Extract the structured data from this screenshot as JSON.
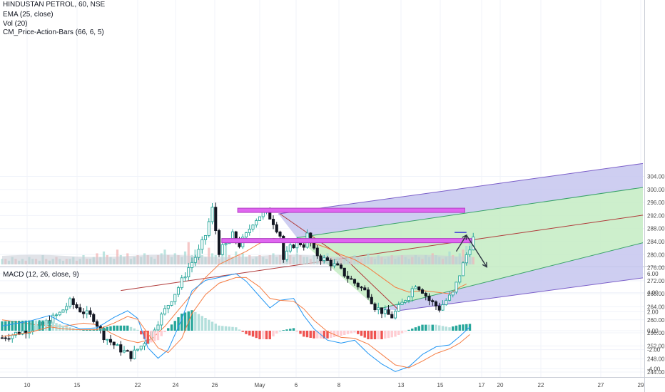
{
  "legend": {
    "symbol": "HINDUSTAN PETROL, 60, NSE",
    "ema": "EMA (25, close)",
    "vol": "Vol (20)",
    "pab": "CM_Price-Action-Bars (66, 6, 5)",
    "macd": "MACD (12, 26, close, 9)"
  },
  "colors": {
    "up": "#26a69a",
    "down": "#131722",
    "ema": "#f57c42",
    "macd_line": "#2196f3",
    "signal_line": "#f57c42",
    "hist_up_strong": "#26a69a",
    "hist_up_weak": "#b2dfdb",
    "hist_down_strong": "#ef5350",
    "hist_down_weak": "#ffcdd2",
    "zone": "#e066f0",
    "pitch_outer": "#c5c6ee",
    "pitch_inner": "#c8edc6"
  },
  "chart_data": [
    {
      "type": "candlestick",
      "title": "HINDUSTAN PETROL, 60, NSE",
      "x_tick_labels": [
        "10",
        "15",
        "22",
        "24",
        "26",
        "May",
        "6",
        "8",
        "13",
        "15",
        "17",
        "20",
        "22",
        "27",
        "29"
      ],
      "y_tick_labels": [
        "244.00",
        "248.00",
        "252.00",
        "256.00",
        "260.00",
        "264.00",
        "268.00",
        "272.00",
        "276.00",
        "280.00",
        "284.00",
        "288.00",
        "292.00",
        "296.00",
        "300.00",
        "304.00"
      ],
      "ylim": [
        241.5,
        305
      ],
      "price_path": [
        [
          0,
          254.5
        ],
        [
          6,
          256.5
        ],
        [
          12,
          258.5
        ],
        [
          17,
          262
        ],
        [
          20,
          265.5
        ],
        [
          23,
          263
        ],
        [
          27,
          260.5
        ],
        [
          30,
          255
        ],
        [
          34,
          251.5
        ],
        [
          38,
          249
        ],
        [
          41,
          252
        ],
        [
          44,
          256
        ],
        [
          48,
          263
        ],
        [
          52,
          270
        ],
        [
          55,
          276
        ],
        [
          58,
          281
        ],
        [
          60,
          286
        ],
        [
          62,
          294
        ],
        [
          64,
          281
        ],
        [
          66,
          283
        ],
        [
          68,
          286
        ],
        [
          70,
          283
        ],
        [
          72,
          286
        ],
        [
          74,
          290
        ],
        [
          76,
          292
        ],
        [
          78,
          293
        ],
        [
          80,
          290
        ],
        [
          82,
          286
        ],
        [
          83,
          278.5
        ],
        [
          85,
          282
        ],
        [
          87,
          284
        ],
        [
          89,
          283
        ],
        [
          90,
          286
        ],
        [
          92,
          281
        ],
        [
          94,
          279
        ],
        [
          96,
          278
        ],
        [
          99,
          276
        ],
        [
          102,
          273
        ],
        [
          105,
          270.5
        ],
        [
          108,
          268
        ],
        [
          110,
          264
        ],
        [
          113,
          262
        ],
        [
          115,
          261
        ],
        [
          118,
          265
        ],
        [
          120,
          268
        ],
        [
          122,
          271
        ],
        [
          124,
          269
        ],
        [
          126,
          266
        ],
        [
          129,
          263.5
        ],
        [
          131,
          266
        ],
        [
          133,
          268
        ],
        [
          135,
          274
        ],
        [
          137,
          280
        ],
        [
          139,
          285
        ]
      ],
      "ema": {
        "name": "EMA (25, close)",
        "points": [
          [
            0,
            260
          ],
          [
            10,
            258.5
          ],
          [
            18,
            258
          ],
          [
            24,
            259
          ],
          [
            28,
            258.5
          ],
          [
            32,
            256
          ],
          [
            36,
            254
          ],
          [
            40,
            253
          ],
          [
            44,
            254
          ],
          [
            48,
            258
          ],
          [
            52,
            263
          ],
          [
            56,
            268
          ],
          [
            60,
            273
          ],
          [
            64,
            277
          ],
          [
            68,
            279
          ],
          [
            72,
            281
          ],
          [
            76,
            283.5
          ],
          [
            80,
            285
          ],
          [
            84,
            284.5
          ],
          [
            88,
            284
          ],
          [
            92,
            283.5
          ],
          [
            96,
            282
          ],
          [
            100,
            280
          ],
          [
            104,
            278.5
          ],
          [
            108,
            276
          ],
          [
            112,
            273
          ],
          [
            116,
            270
          ],
          [
            120,
            268.5
          ],
          [
            124,
            269
          ],
          [
            128,
            268.5
          ],
          [
            132,
            268
          ],
          [
            135,
            270
          ],
          [
            137,
            271
          ]
        ]
      },
      "volume": {
        "name": "Vol (20)",
        "values": [
          3,
          3,
          2,
          4,
          3,
          2,
          3,
          2,
          4,
          3,
          3,
          2,
          5,
          3,
          2,
          3,
          4,
          3,
          2,
          3,
          3,
          4,
          2,
          3,
          5,
          3,
          3,
          4,
          6,
          4,
          7,
          5,
          4,
          3,
          8,
          5,
          4,
          6,
          3,
          4,
          5,
          4,
          6,
          5,
          4,
          3,
          5,
          6,
          8,
          5,
          4,
          6,
          5,
          4,
          7,
          12,
          5,
          8,
          6,
          5,
          4,
          9,
          6,
          5,
          3,
          8,
          14,
          5,
          4,
          7,
          5,
          6,
          4,
          5,
          3,
          4,
          5,
          4,
          3,
          5,
          6,
          4,
          5,
          4,
          3,
          5,
          4,
          6,
          5,
          4,
          4,
          3,
          5,
          4,
          3,
          5,
          6,
          4,
          3,
          4,
          5,
          3,
          4,
          3,
          5,
          4,
          3,
          4,
          6,
          4,
          3,
          5,
          4,
          3,
          4,
          5,
          3,
          4,
          5,
          4,
          3,
          4,
          5,
          4,
          3,
          5,
          4,
          6,
          5,
          4,
          3,
          4,
          7,
          5,
          4,
          6,
          8,
          10,
          14,
          4
        ],
        "sma_level": 4.6
      },
      "zones": [
        {
          "x_start": 69.5,
          "x_end": 136.5,
          "level": 293.6
        },
        {
          "x_start": 64.8,
          "x_end": 138.5,
          "level": 284.3
        }
      ],
      "target_tick": {
        "x_start": 133.5,
        "x_end": 137,
        "level": 286.8
      },
      "pitchfork": {
        "upper_outer": [
          [
            81.5,
            292.5
          ],
          [
            165,
            304.5
          ]
        ],
        "upper_inner": [
          [
            87,
            285.2
          ],
          [
            177,
            298.8
          ]
        ],
        "median": [
          [
            35,
            269
          ],
          [
            177,
            290.3
          ]
        ],
        "lower_inner": [
          [
            111,
            263.3
          ],
          [
            177,
            280.5
          ]
        ],
        "lower_outer": [
          [
            117.5,
            262.9
          ],
          [
            177,
            271.2
          ]
        ],
        "handle": [
          [
            82,
            292.5
          ],
          [
            102,
            278
          ],
          [
            117,
            263
          ]
        ]
      },
      "projection": [
        [
          134,
          281
        ],
        [
          137,
          286
        ],
        [
          143,
          276.2
        ]
      ]
    },
    {
      "type": "macd",
      "title": "MACD (12, 26, close, 9)",
      "y_tick_labels": [
        "6.00",
        "4.00",
        "2.00",
        "0.00",
        "-2.00",
        "-4.00"
      ],
      "ylim": [
        -5.2,
        6.3
      ],
      "macd": [
        [
          0,
          0.5
        ],
        [
          8,
          1.0
        ],
        [
          14,
          1.6
        ],
        [
          18,
          0.8
        ],
        [
          23,
          0.2
        ],
        [
          28,
          0.3
        ],
        [
          33,
          1.4
        ],
        [
          37,
          2.1
        ],
        [
          40,
          1.3
        ],
        [
          43,
          -1.8
        ],
        [
          46,
          -2.9
        ],
        [
          49,
          -2.0
        ],
        [
          53,
          1.2
        ],
        [
          56,
          4.2
        ],
        [
          60,
          5.3
        ],
        [
          64,
          5.6
        ],
        [
          69,
          6.0
        ],
        [
          72,
          5.2
        ],
        [
          76,
          3.6
        ],
        [
          79,
          2.4
        ],
        [
          82,
          3.2
        ],
        [
          86,
          3.4
        ],
        [
          89,
          1.6
        ],
        [
          92,
          0.2
        ],
        [
          96,
          -1.0
        ],
        [
          100,
          -1.3
        ],
        [
          104,
          -1.0
        ],
        [
          108,
          -2.4
        ],
        [
          112,
          -3.5
        ],
        [
          116,
          -4.3
        ],
        [
          120,
          -3.8
        ],
        [
          124,
          -2.5
        ],
        [
          128,
          -1.7
        ],
        [
          132,
          -1.5
        ],
        [
          135,
          -0.6
        ],
        [
          138,
          0.4
        ]
      ],
      "signal": [
        [
          0,
          -0.6
        ],
        [
          8,
          -0.2
        ],
        [
          14,
          0.4
        ],
        [
          18,
          0.2
        ],
        [
          23,
          0.1
        ],
        [
          28,
          0.1
        ],
        [
          33,
          0.8
        ],
        [
          37,
          1.5
        ],
        [
          40,
          1.2
        ],
        [
          43,
          -0.3
        ],
        [
          46,
          -1.8
        ],
        [
          49,
          -2.3
        ],
        [
          53,
          -0.8
        ],
        [
          56,
          1.8
        ],
        [
          60,
          3.8
        ],
        [
          64,
          5.0
        ],
        [
          69,
          5.6
        ],
        [
          72,
          5.6
        ],
        [
          76,
          4.6
        ],
        [
          79,
          3.4
        ],
        [
          82,
          3.2
        ],
        [
          86,
          3.1
        ],
        [
          89,
          2.3
        ],
        [
          92,
          1.1
        ],
        [
          96,
          -0.1
        ],
        [
          100,
          -0.7
        ],
        [
          104,
          -0.8
        ],
        [
          108,
          -1.4
        ],
        [
          112,
          -2.5
        ],
        [
          116,
          -3.6
        ],
        [
          120,
          -3.9
        ],
        [
          124,
          -3.2
        ],
        [
          128,
          -2.4
        ],
        [
          132,
          -1.9
        ],
        [
          135,
          -1.3
        ],
        [
          138,
          -0.4
        ]
      ]
    }
  ]
}
